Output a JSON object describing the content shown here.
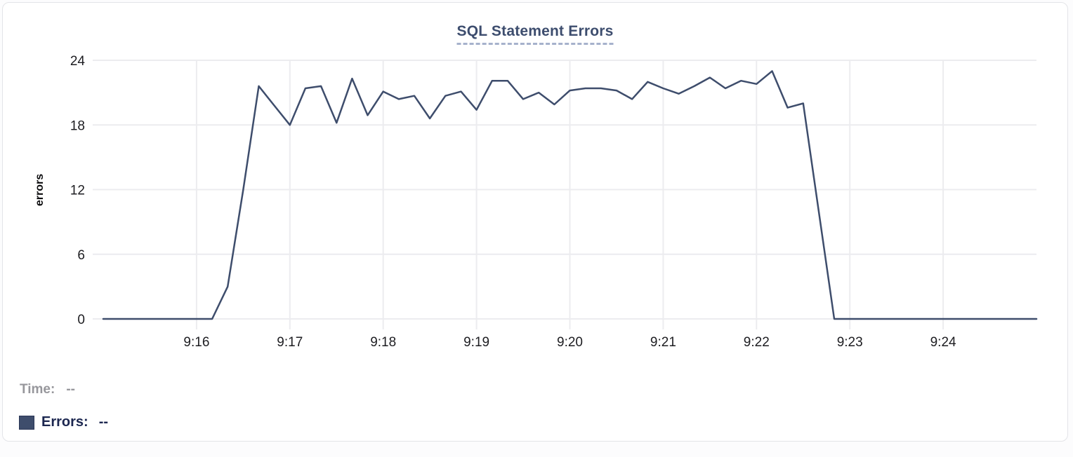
{
  "card": {
    "title": "SQL Statement Errors"
  },
  "readout": {
    "time_label": "Time:",
    "time_value": "--",
    "errors_label": "Errors:",
    "errors_value": "--"
  },
  "colors": {
    "series_navy": "#3e4d6c",
    "title_navy": "#3d4d6e",
    "muted_gray": "#97979c",
    "legend_navy": "#1c2750",
    "gridline": "#ececef",
    "tick_text": "#1d1d21"
  },
  "chart_data": {
    "type": "line",
    "title": "SQL Statement Errors",
    "xlabel": "",
    "ylabel": "errors",
    "ylim": [
      0,
      24
    ],
    "y_ticks": [
      0,
      6,
      12,
      18,
      24
    ],
    "x_ticks": [
      "9:16",
      "9:17",
      "9:18",
      "9:19",
      "9:20",
      "9:21",
      "9:22",
      "9:23",
      "9:24"
    ],
    "x_range": [
      "9:15:00",
      "9:25:00"
    ],
    "grid": true,
    "legend_position": "bottom-left",
    "series": [
      {
        "name": "Errors",
        "color": "#3e4d6c",
        "x": [
          "9:15:00",
          "9:15:10",
          "9:15:20",
          "9:15:30",
          "9:15:40",
          "9:15:50",
          "9:16:00",
          "9:16:10",
          "9:16:20",
          "9:16:30",
          "9:16:40",
          "9:16:50",
          "9:17:00",
          "9:17:10",
          "9:17:20",
          "9:17:30",
          "9:17:40",
          "9:17:50",
          "9:18:00",
          "9:18:10",
          "9:18:20",
          "9:18:30",
          "9:18:40",
          "9:18:50",
          "9:19:00",
          "9:19:10",
          "9:19:20",
          "9:19:30",
          "9:19:40",
          "9:19:50",
          "9:20:00",
          "9:20:10",
          "9:20:20",
          "9:20:30",
          "9:20:40",
          "9:20:50",
          "9:21:00",
          "9:21:10",
          "9:21:20",
          "9:21:30",
          "9:21:40",
          "9:21:50",
          "9:22:00",
          "9:22:10",
          "9:22:20",
          "9:22:30",
          "9:22:40",
          "9:22:50",
          "9:23:00",
          "9:23:10",
          "9:23:20",
          "9:23:30",
          "9:23:40",
          "9:23:50",
          "9:24:00",
          "9:24:10",
          "9:24:20",
          "9:24:30",
          "9:24:40",
          "9:24:50",
          "9:25:00"
        ],
        "values": [
          0,
          0,
          0,
          0,
          0,
          0,
          0,
          0,
          3,
          12,
          21.6,
          19.8,
          18,
          21.4,
          21.6,
          18.2,
          22.3,
          18.9,
          21.1,
          20.4,
          20.7,
          18.6,
          20.7,
          21.1,
          19.4,
          22.1,
          22.1,
          20.4,
          21,
          19.9,
          21.2,
          21.4,
          21.4,
          21.2,
          20.4,
          22,
          21.4,
          20.9,
          21.6,
          22.4,
          21.4,
          22.1,
          21.8,
          23,
          19.6,
          20,
          10,
          0,
          0,
          0,
          0,
          0,
          0,
          0,
          0,
          0,
          0,
          0,
          0,
          0,
          0
        ]
      }
    ]
  }
}
